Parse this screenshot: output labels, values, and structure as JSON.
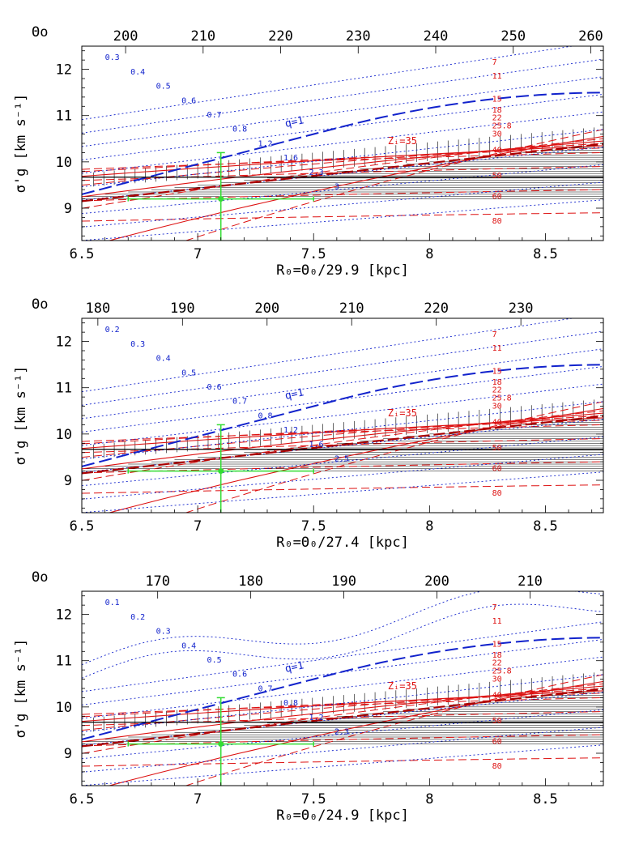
{
  "colors": {
    "red_contour": "#dd1111",
    "blue_contour": "#1122cc",
    "green_point": "#33dd33",
    "black": "#000000"
  },
  "chart_data": [
    {
      "type": "contour",
      "xlabel": "R₀=Θ₀/29.9 [kpc]",
      "ylabel": "σ'g [km s⁻¹]",
      "toplabel": "Θo",
      "xlim": [
        6.5,
        8.75
      ],
      "ylim": [
        8.3,
        12.5
      ],
      "xticks": [
        "6.5",
        "7",
        "7.5",
        "8",
        "8.5"
      ],
      "xtick_values": [
        6.5,
        7,
        7.5,
        8,
        8.5
      ],
      "yticks": [
        "9",
        "10",
        "11",
        "12"
      ],
      "ytick_values": [
        9,
        10,
        11,
        12
      ],
      "top_ticks": [
        "200",
        "210",
        "220",
        "230",
        "240",
        "250",
        "260"
      ],
      "top_tick_values": [
        200,
        210,
        220,
        230,
        240,
        250,
        260
      ],
      "theta_factor": 29.9,
      "hline": 9.67,
      "point": {
        "x": 7.1,
        "y": 9.2,
        "xerr": 0.4,
        "yerr_up": 1.0,
        "yerr_down": 1.0
      },
      "red_labels": [
        "7",
        "11",
        "15",
        "18",
        "22",
        "25.8",
        "30",
        "40",
        "50",
        "60",
        "80"
      ],
      "blue_labels": [
        "0.3",
        "0.4",
        "0.5",
        "0.6",
        "0.7",
        "0.8",
        "1.2",
        "1.6",
        "2.3",
        "3"
      ],
      "annotations": [
        "q=1",
        "Zᵢ=35"
      ]
    },
    {
      "type": "contour",
      "xlabel": "R₀=Θ₀/27.4 [kpc]",
      "ylabel": "σ'g [km s⁻¹]",
      "toplabel": "Θo",
      "xlim": [
        6.5,
        8.75
      ],
      "ylim": [
        8.3,
        12.5
      ],
      "xticks": [
        "6.5",
        "7",
        "7.5",
        "8",
        "8.5"
      ],
      "xtick_values": [
        6.5,
        7,
        7.5,
        8,
        8.5
      ],
      "yticks": [
        "9",
        "10",
        "11",
        "12"
      ],
      "ytick_values": [
        9,
        10,
        11,
        12
      ],
      "top_ticks": [
        "180",
        "190",
        "200",
        "210",
        "220",
        "230"
      ],
      "top_tick_values": [
        180,
        190,
        200,
        210,
        220,
        230
      ],
      "theta_factor": 27.4,
      "hline": 9.67,
      "point": {
        "x": 7.1,
        "y": 9.2,
        "xerr": 0.4,
        "yerr_up": 1.0,
        "yerr_down": 1.0
      },
      "red_labels": [
        "7",
        "11",
        "15",
        "18",
        "22",
        "25.8",
        "30",
        "40",
        "50",
        "60",
        "80"
      ],
      "blue_labels": [
        "0.2",
        "0.3",
        "0.4",
        "0.5",
        "0.6",
        "0.7",
        "0.8",
        "1.2",
        "1.6",
        "2.5"
      ],
      "annotations": [
        "q=1",
        "Zᵢ=35"
      ]
    },
    {
      "type": "contour",
      "xlabel": "R₀=Θ₀/24.9 [kpc]",
      "ylabel": "σ'g [km s⁻¹]",
      "toplabel": "Θo",
      "xlim": [
        6.5,
        8.75
      ],
      "ylim": [
        8.3,
        12.5
      ],
      "xticks": [
        "6.5",
        "7",
        "7.5",
        "8",
        "8.5"
      ],
      "xtick_values": [
        6.5,
        7,
        7.5,
        8,
        8.5
      ],
      "yticks": [
        "9",
        "10",
        "11",
        "12"
      ],
      "ytick_values": [
        9,
        10,
        11,
        12
      ],
      "top_ticks": [
        "170",
        "180",
        "190",
        "200",
        "210"
      ],
      "top_tick_values": [
        170,
        180,
        190,
        200,
        210
      ],
      "theta_factor": 24.9,
      "hline": 9.67,
      "point": {
        "x": 7.1,
        "y": 9.2,
        "xerr": 0.4,
        "yerr_up": 1.0,
        "yerr_down": 1.0
      },
      "red_labels": [
        "7",
        "11",
        "15",
        "18",
        "22",
        "25.8",
        "30",
        "40",
        "50",
        "60",
        "80"
      ],
      "blue_labels": [
        "0.1",
        "0.2",
        "0.3",
        "0.4",
        "0.5",
        "0.6",
        "0.7",
        "0.8",
        "1.2",
        "2.3"
      ],
      "annotations": [
        "q=1",
        "Zᵢ=35"
      ]
    }
  ]
}
